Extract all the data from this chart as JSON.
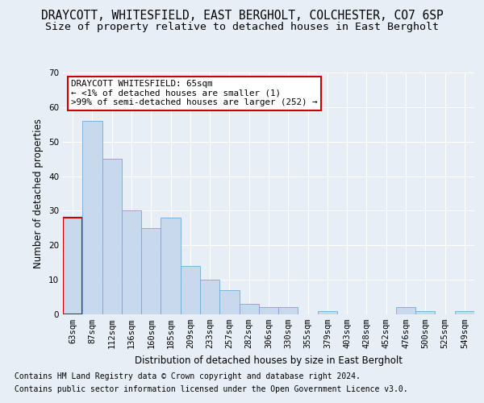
{
  "title": "DRAYCOTT, WHITESFIELD, EAST BERGHOLT, COLCHESTER, CO7 6SP",
  "subtitle": "Size of property relative to detached houses in East Bergholt",
  "xlabel": "Distribution of detached houses by size in East Bergholt",
  "ylabel": "Number of detached properties",
  "categories": [
    "63sqm",
    "87sqm",
    "112sqm",
    "136sqm",
    "160sqm",
    "185sqm",
    "209sqm",
    "233sqm",
    "257sqm",
    "282sqm",
    "306sqm",
    "330sqm",
    "355sqm",
    "379sqm",
    "403sqm",
    "428sqm",
    "452sqm",
    "476sqm",
    "500sqm",
    "525sqm",
    "549sqm"
  ],
  "values": [
    28,
    56,
    45,
    30,
    25,
    28,
    14,
    10,
    7,
    3,
    2,
    2,
    0,
    1,
    0,
    0,
    0,
    2,
    1,
    0,
    1
  ],
  "bar_color": "#c9d9ed",
  "bar_edge_color": "#6baed6",
  "highlight_bar_edge_color": "#cc0000",
  "highlight_index": 0,
  "ylim": [
    0,
    70
  ],
  "yticks": [
    0,
    10,
    20,
    30,
    40,
    50,
    60,
    70
  ],
  "annotation_text": "DRAYCOTT WHITESFIELD: 65sqm\n← <1% of detached houses are smaller (1)\n>99% of semi-detached houses are larger (252) →",
  "annotation_box_facecolor": "#ffffff",
  "annotation_box_edgecolor": "#cc0000",
  "footer_line1": "Contains HM Land Registry data © Crown copyright and database right 2024.",
  "footer_line2": "Contains public sector information licensed under the Open Government Licence v3.0.",
  "background_color": "#e8eef6",
  "plot_background_color": "#e8eef6",
  "grid_color": "#ffffff",
  "title_fontsize": 10.5,
  "subtitle_fontsize": 9.5,
  "axis_label_fontsize": 8.5,
  "tick_fontsize": 7.5,
  "annotation_fontsize": 7.8,
  "footer_fontsize": 7.0
}
